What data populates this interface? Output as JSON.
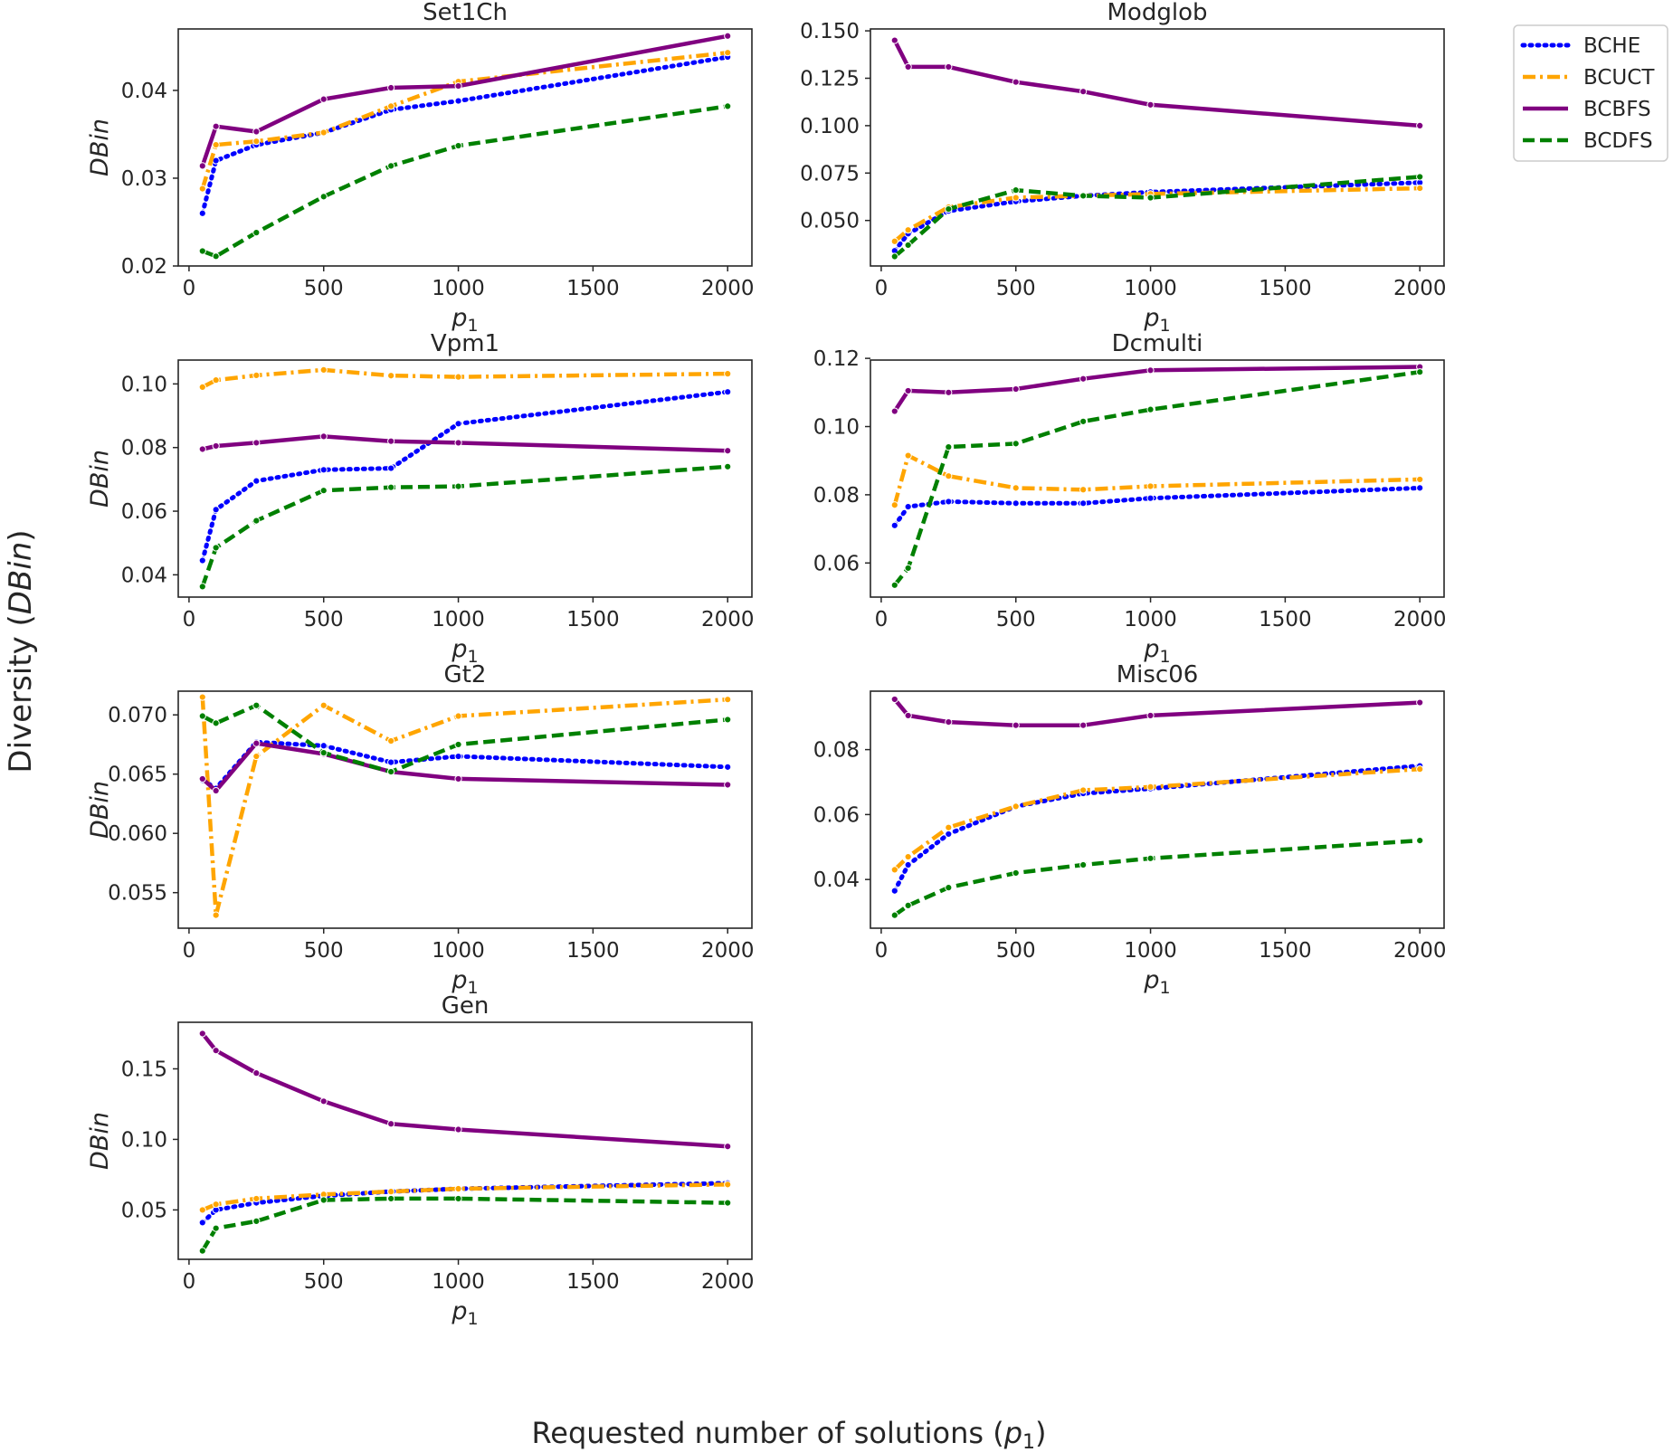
{
  "figure": {
    "ylabel_prefix": "Diversity (",
    "ylabel_var": "DBin",
    "ylabel_suffix": ")",
    "xlabel_prefix": "Requested number of solutions (",
    "xlabel_var": "p",
    "xlabel_sub": "1",
    "xlabel_suffix": ")"
  },
  "legend": {
    "placement": "outside-top-right",
    "entries": [
      "BCHE",
      "BCUCT",
      "BCBFS",
      "BCDFS"
    ]
  },
  "styles": {
    "BCHE": {
      "color": "#0000ff",
      "dash": "dotted"
    },
    "BCUCT": {
      "color": "#ffa500",
      "dash": "dashdot"
    },
    "BCBFS": {
      "color": "#800080",
      "dash": "solid"
    },
    "BCDFS": {
      "color": "#008000",
      "dash": "dashed"
    }
  },
  "chart_data": [
    {
      "type": "line",
      "title": "Set1Ch",
      "xlabel_var": "p",
      "xlabel_sub": "1",
      "ylabel": "DBin",
      "x": [
        50,
        100,
        250,
        500,
        750,
        1000,
        2000
      ],
      "xticks": [
        0,
        500,
        1000,
        1500,
        2000
      ],
      "xlim": [
        -40,
        2090
      ],
      "yticks": [
        "0.02",
        "0.03",
        "0.04"
      ],
      "ylim": [
        0.02,
        0.047
      ],
      "series": [
        {
          "name": "BCHE",
          "values": [
            0.026,
            0.032,
            0.0338,
            0.0352,
            0.0378,
            0.0388,
            0.0438
          ]
        },
        {
          "name": "BCUCT",
          "values": [
            0.0288,
            0.0338,
            0.0342,
            0.0352,
            0.0382,
            0.041,
            0.0443
          ]
        },
        {
          "name": "BCBFS",
          "values": [
            0.0314,
            0.0359,
            0.0353,
            0.039,
            0.0403,
            0.0405,
            0.0462
          ]
        },
        {
          "name": "BCDFS",
          "values": [
            0.0217,
            0.0211,
            0.0238,
            0.0279,
            0.0314,
            0.0337,
            0.0382
          ]
        }
      ]
    },
    {
      "type": "line",
      "title": "Modglob",
      "xlabel_var": "p",
      "xlabel_sub": "1",
      "ylabel": "",
      "x": [
        50,
        100,
        250,
        500,
        750,
        1000,
        2000
      ],
      "xticks": [
        0,
        500,
        1000,
        1500,
        2000
      ],
      "xlim": [
        -40,
        2090
      ],
      "yticks": [
        "0.050",
        "0.075",
        "0.100",
        "0.125",
        "0.150"
      ],
      "ylim": [
        0.026,
        0.151
      ],
      "series": [
        {
          "name": "BCHE",
          "values": [
            0.034,
            0.043,
            0.055,
            0.06,
            0.063,
            0.065,
            0.07
          ]
        },
        {
          "name": "BCUCT",
          "values": [
            0.039,
            0.045,
            0.057,
            0.062,
            0.063,
            0.064,
            0.067
          ]
        },
        {
          "name": "BCBFS",
          "values": [
            0.145,
            0.131,
            0.131,
            0.123,
            0.118,
            0.111,
            0.1
          ]
        },
        {
          "name": "BCDFS",
          "values": [
            0.031,
            0.037,
            0.056,
            0.066,
            0.063,
            0.062,
            0.073
          ]
        }
      ]
    },
    {
      "type": "line",
      "title": "Vpm1",
      "xlabel_var": "p",
      "xlabel_sub": "1",
      "ylabel": "DBin",
      "x": [
        50,
        100,
        250,
        500,
        750,
        1000,
        2000
      ],
      "xticks": [
        0,
        500,
        1000,
        1500,
        2000
      ],
      "xlim": [
        -40,
        2090
      ],
      "yticks": [
        "0.04",
        "0.06",
        "0.08",
        "0.10"
      ],
      "ylim": [
        0.033,
        0.1075
      ],
      "series": [
        {
          "name": "BCHE",
          "values": [
            0.0445,
            0.0605,
            0.0695,
            0.073,
            0.0735,
            0.0875,
            0.0975
          ]
        },
        {
          "name": "BCUCT",
          "values": [
            0.099,
            0.1012,
            0.1027,
            0.1044,
            0.1026,
            0.1022,
            0.1032
          ]
        },
        {
          "name": "BCBFS",
          "values": [
            0.0795,
            0.0805,
            0.0815,
            0.0835,
            0.082,
            0.0815,
            0.079
          ]
        },
        {
          "name": "BCDFS",
          "values": [
            0.0363,
            0.0485,
            0.057,
            0.0665,
            0.0675,
            0.0678,
            0.074
          ]
        }
      ]
    },
    {
      "type": "line",
      "title": "Dcmulti",
      "xlabel_var": "p",
      "xlabel_sub": "1",
      "ylabel": "",
      "x": [
        50,
        100,
        250,
        500,
        750,
        1000,
        2000
      ],
      "xticks": [
        0,
        500,
        1000,
        1500,
        2000
      ],
      "xlim": [
        -40,
        2090
      ],
      "yticks": [
        "0.06",
        "0.08",
        "0.10",
        "0.12"
      ],
      "ylim": [
        0.05,
        0.1195
      ],
      "series": [
        {
          "name": "BCHE",
          "values": [
            0.071,
            0.0765,
            0.078,
            0.0775,
            0.0775,
            0.079,
            0.082
          ]
        },
        {
          "name": "BCUCT",
          "values": [
            0.077,
            0.0915,
            0.0855,
            0.082,
            0.0815,
            0.0825,
            0.0845
          ]
        },
        {
          "name": "BCBFS",
          "values": [
            0.1045,
            0.1105,
            0.11,
            0.111,
            0.114,
            0.1165,
            0.1175
          ]
        },
        {
          "name": "BCDFS",
          "values": [
            0.0535,
            0.0585,
            0.094,
            0.095,
            0.1015,
            0.105,
            0.116
          ]
        }
      ]
    },
    {
      "type": "line",
      "title": "Gt2",
      "xlabel_var": "p",
      "xlabel_sub": "1",
      "ylabel": "DBin",
      "x": [
        50,
        100,
        250,
        500,
        750,
        1000,
        2000
      ],
      "xticks": [
        0,
        500,
        1000,
        1500,
        2000
      ],
      "xlim": [
        -40,
        2090
      ],
      "yticks": [
        "0.055",
        "0.060",
        "0.065",
        "0.070"
      ],
      "ylim": [
        0.052,
        0.072
      ],
      "series": [
        {
          "name": "BCHE",
          "values": [
            0.0645,
            0.0638,
            0.0677,
            0.0674,
            0.066,
            0.0665,
            0.0656
          ]
        },
        {
          "name": "BCUCT",
          "values": [
            0.0715,
            0.0531,
            0.0665,
            0.0708,
            0.0678,
            0.0699,
            0.0713
          ]
        },
        {
          "name": "BCBFS",
          "values": [
            0.0646,
            0.0636,
            0.0676,
            0.0667,
            0.0652,
            0.0646,
            0.0641
          ]
        },
        {
          "name": "BCDFS",
          "values": [
            0.0699,
            0.0693,
            0.0708,
            0.0668,
            0.0652,
            0.0675,
            0.0696
          ]
        }
      ]
    },
    {
      "type": "line",
      "title": "Misc06",
      "xlabel_var": "p",
      "xlabel_sub": "1",
      "ylabel": "",
      "x": [
        50,
        100,
        250,
        500,
        750,
        1000,
        2000
      ],
      "xticks": [
        0,
        500,
        1000,
        1500,
        2000
      ],
      "xlim": [
        -40,
        2090
      ],
      "yticks": [
        "0.04",
        "0.06",
        "0.08"
      ],
      "ylim": [
        0.025,
        0.098
      ],
      "series": [
        {
          "name": "BCHE",
          "values": [
            0.0365,
            0.0445,
            0.054,
            0.0625,
            0.0665,
            0.068,
            0.075
          ]
        },
        {
          "name": "BCUCT",
          "values": [
            0.043,
            0.047,
            0.056,
            0.0625,
            0.0675,
            0.0685,
            0.074
          ]
        },
        {
          "name": "BCBFS",
          "values": [
            0.0955,
            0.0905,
            0.0885,
            0.0875,
            0.0875,
            0.0905,
            0.0945
          ]
        },
        {
          "name": "BCDFS",
          "values": [
            0.029,
            0.032,
            0.0375,
            0.042,
            0.0445,
            0.0465,
            0.052
          ]
        }
      ]
    },
    {
      "type": "line",
      "title": "Gen",
      "xlabel_var": "p",
      "xlabel_sub": "1",
      "ylabel": "DBin",
      "x": [
        50,
        100,
        250,
        500,
        750,
        1000,
        2000
      ],
      "xticks": [
        0,
        500,
        1000,
        1500,
        2000
      ],
      "xlim": [
        -40,
        2090
      ],
      "yticks": [
        "0.05",
        "0.10",
        "0.15"
      ],
      "ylim": [
        0.015,
        0.183
      ],
      "series": [
        {
          "name": "BCHE",
          "values": [
            0.041,
            0.05,
            0.055,
            0.06,
            0.063,
            0.065,
            0.069
          ]
        },
        {
          "name": "BCUCT",
          "values": [
            0.05,
            0.054,
            0.058,
            0.061,
            0.063,
            0.065,
            0.068
          ]
        },
        {
          "name": "BCBFS",
          "values": [
            0.175,
            0.163,
            0.147,
            0.127,
            0.111,
            0.107,
            0.095
          ]
        },
        {
          "name": "BCDFS",
          "values": [
            0.021,
            0.037,
            0.042,
            0.057,
            0.058,
            0.058,
            0.055
          ]
        }
      ]
    }
  ]
}
